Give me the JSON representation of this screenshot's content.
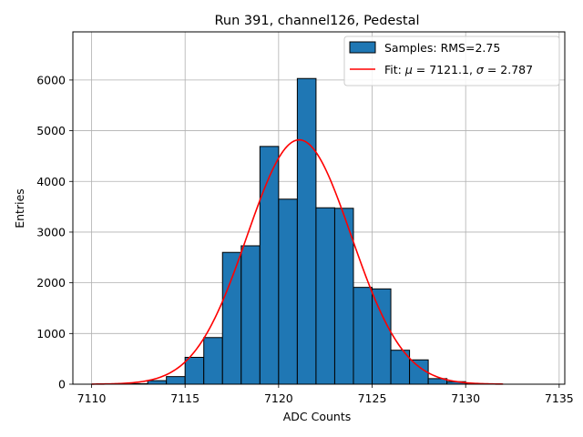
{
  "chart_data": {
    "type": "bar",
    "title": "Run 391, channel126, Pedestal",
    "xlabel": "ADC Counts",
    "ylabel": "Entries",
    "xlim": [
      7109.0,
      7135.3
    ],
    "ylim": [
      0,
      6950
    ],
    "xticks": [
      7110,
      7115,
      7120,
      7125,
      7130,
      7135
    ],
    "yticks": [
      0,
      1000,
      2000,
      3000,
      4000,
      5000,
      6000
    ],
    "grid": true,
    "legend_position": "top-right",
    "histogram": {
      "name": "Samples: RMS=2.75",
      "color": "#1f77b4",
      "edge_color": "#000000",
      "bins": [
        {
          "x0": 7112,
          "x1": 7113,
          "count": 10
        },
        {
          "x0": 7113,
          "x1": 7114,
          "count": 70
        },
        {
          "x0": 7114,
          "x1": 7115,
          "count": 150
        },
        {
          "x0": 7115,
          "x1": 7116,
          "count": 530
        },
        {
          "x0": 7116,
          "x1": 7117,
          "count": 920
        },
        {
          "x0": 7117,
          "x1": 7118,
          "count": 2600
        },
        {
          "x0": 7118,
          "x1": 7119,
          "count": 2730
        },
        {
          "x0": 7119,
          "x1": 7120,
          "count": 4690
        },
        {
          "x0": 7120,
          "x1": 7121,
          "count": 3650
        },
        {
          "x0": 7121,
          "x1": 7122,
          "count": 6030
        },
        {
          "x0": 7122,
          "x1": 7123,
          "count": 3480
        },
        {
          "x0": 7123,
          "x1": 7124,
          "count": 3470
        },
        {
          "x0": 7124,
          "x1": 7125,
          "count": 1910
        },
        {
          "x0": 7125,
          "x1": 7126,
          "count": 1880
        },
        {
          "x0": 7126,
          "x1": 7127,
          "count": 670
        },
        {
          "x0": 7127,
          "x1": 7128,
          "count": 480
        },
        {
          "x0": 7128,
          "x1": 7129,
          "count": 110
        },
        {
          "x0": 7129,
          "x1": 7130,
          "count": 50
        },
        {
          "x0": 7130,
          "x1": 7131,
          "count": 10
        }
      ]
    },
    "fit": {
      "type": "line",
      "name": "Fit: μ = 7121.1, σ = 2.787",
      "legend_prefix": "Fit: ",
      "mu_symbol": "μ",
      "mu_value": " = 7121.1, ",
      "sigma_symbol": "σ",
      "sigma_value": " = 2.787",
      "color": "#ff0000",
      "mu": 7121.1,
      "sigma": 2.787,
      "amplitude": 4820,
      "x_range": [
        7110,
        7132
      ]
    }
  }
}
